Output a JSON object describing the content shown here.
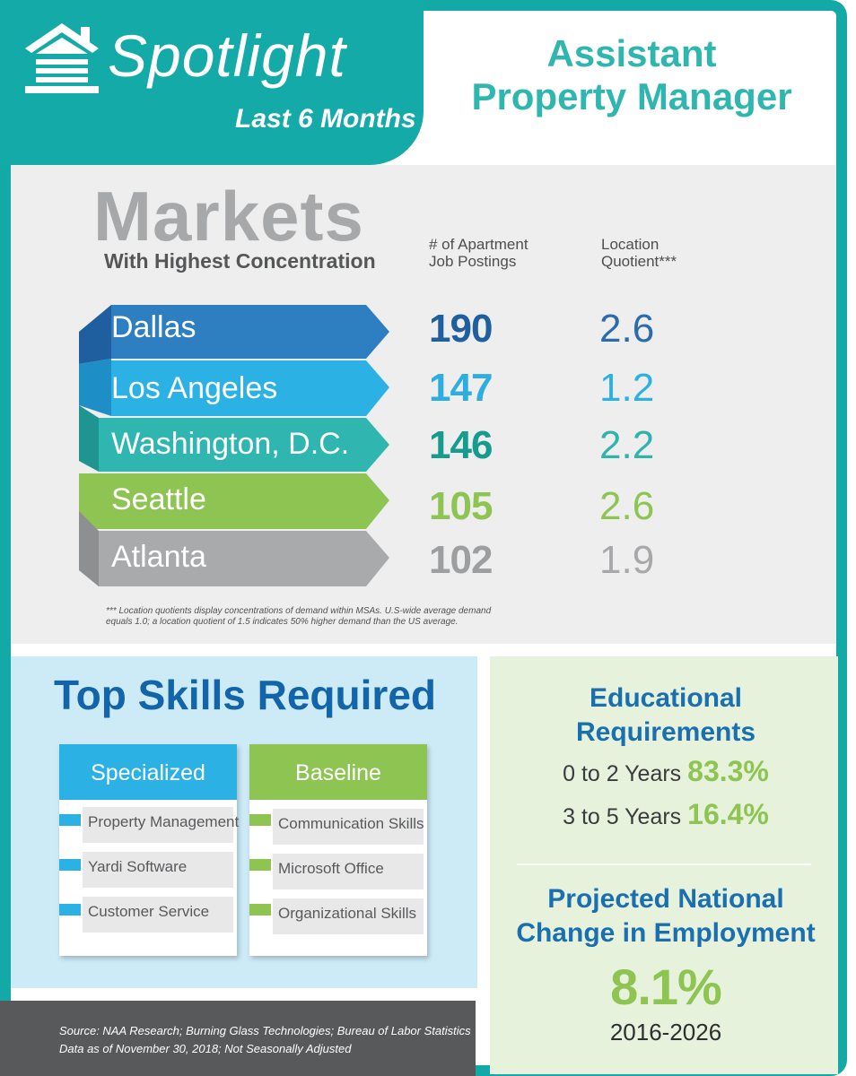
{
  "header": {
    "brand": "Spotlight",
    "period": "Last 6 Months",
    "job_title_line1": "Assistant",
    "job_title_line2": "Property Manager"
  },
  "markets": {
    "title": "Markets",
    "subtitle": "With Highest Concentration",
    "col_postings_line1": "# of Apartment",
    "col_postings_line2": "Job Postings",
    "col_lq_line1": "Location",
    "col_lq_line2": "Quotient***",
    "rows": [
      {
        "city": "Dallas",
        "postings": "190",
        "lq": "2.6",
        "color": "#2e7fc1"
      },
      {
        "city": "Los Angeles",
        "postings": "147",
        "lq": "1.2",
        "color": "#2cb1e5"
      },
      {
        "city": "Washington, D.C.",
        "postings": "146",
        "lq": "2.2",
        "color": "#30b6b0"
      },
      {
        "city": "Seattle",
        "postings": "105",
        "lq": "2.6",
        "color": "#8dc452"
      },
      {
        "city": "Atlanta",
        "postings": "102",
        "lq": "1.9",
        "color": "#a9aaac"
      }
    ],
    "value_colors": [
      "#1f5f9f",
      "#2caee0",
      "#159c8f",
      "#8dc452",
      "#9d9ea0"
    ],
    "lq_colors": [
      "#2a6cae",
      "#2cb1e5",
      "#2fb3ad",
      "#8dc452",
      "#a7a8aa"
    ],
    "footnote_line1": "*** Location quotients display concentrations of demand within MSAs. U.S-wide average demand",
    "footnote_line2": "equals 1.0; a location quotient of 1.5 indicates 50% higher demand than the US average."
  },
  "skills": {
    "title": "Top Skills Required",
    "specialized": {
      "label": "Specialized",
      "items": [
        "Property Management",
        "Yardi Software",
        "Customer Service"
      ]
    },
    "baseline": {
      "label": "Baseline",
      "items": [
        "Communication Skills",
        "Microsoft Office",
        "Organizational Skills"
      ]
    }
  },
  "education": {
    "title_line1": "Educational",
    "title_line2": "Requirements",
    "rows": [
      {
        "label": "0 to 2 Years",
        "value": "83.3%"
      },
      {
        "label": "3 to 5 Years",
        "value": "16.4%"
      }
    ]
  },
  "projection": {
    "title_line1": "Projected National",
    "title_line2": "Change in Employment",
    "value": "8.1%",
    "years": "2016-2026"
  },
  "source": {
    "line1": "Source:  NAA Research; Burning Glass Technologies; Bureau of Labor Statistics",
    "line2": "Data as of November 30, 2018; Not Seasonally Adjusted"
  },
  "colors": {
    "teal": "#14aaa7",
    "dark_blue": "#1265a8",
    "green": "#8dc452"
  }
}
